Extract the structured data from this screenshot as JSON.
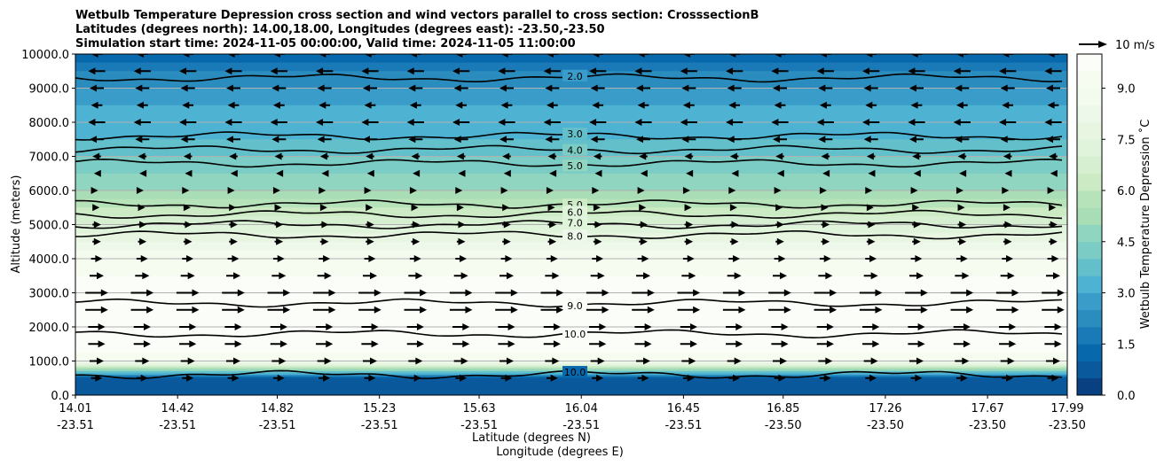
{
  "chart_data": {
    "type": "heatmap",
    "title_lines": [
      "Wetbulb Temperature Depression cross section and wind vectors parallel to cross section: CrosssectionB",
      "Latitudes (degrees north): 14.00,18.00, Longitudes (degrees east): -23.50,-23.50",
      "Simulation start time: 2024-11-05 00:00:00, Valid time: 2024-11-05 11:00:00"
    ],
    "ylabel": "Altitude (meters)",
    "xlabel_lat": "Latitude (degrees N)",
    "xlabel_lon": "Longitude (degrees E)",
    "ylim": [
      0,
      10000
    ],
    "xlim": [
      14.01,
      17.99
    ],
    "y_ticks": [
      "0.0",
      "1000.0",
      "2000.0",
      "3000.0",
      "4000.0",
      "5000.0",
      "6000.0",
      "7000.0",
      "8000.0",
      "9000.0",
      "10000.0"
    ],
    "x_ticks": [
      {
        "lat": "14.01",
        "lon": "-23.51",
        "pos": 14.01
      },
      {
        "lat": "14.42",
        "lon": "-23.51",
        "pos": 14.42
      },
      {
        "lat": "14.82",
        "lon": "-23.51",
        "pos": 14.82
      },
      {
        "lat": "15.23",
        "lon": "-23.51",
        "pos": 15.23
      },
      {
        "lat": "15.63",
        "lon": "-23.51",
        "pos": 15.63
      },
      {
        "lat": "16.04",
        "lon": "-23.51",
        "pos": 16.04
      },
      {
        "lat": "16.45",
        "lon": "-23.51",
        "pos": 16.45
      },
      {
        "lat": "16.85",
        "lon": "-23.50",
        "pos": 16.85
      },
      {
        "lat": "17.26",
        "lon": "-23.50",
        "pos": 17.26
      },
      {
        "lat": "17.67",
        "lon": "-23.50",
        "pos": 17.67
      },
      {
        "lat": "17.99",
        "lon": "-23.50",
        "pos": 17.99
      }
    ],
    "colorbar": {
      "label": "Wetbulb Temperature Depression ˚C",
      "range": [
        0,
        10
      ],
      "ticks": [
        "0.0",
        "1.5",
        "3.0",
        "4.5",
        "6.0",
        "7.5",
        "9.0"
      ],
      "levels": [
        0,
        0.5,
        1,
        1.5,
        2,
        2.5,
        3,
        3.5,
        4,
        4.5,
        5,
        5.5,
        6,
        6.5,
        7,
        7.5,
        8,
        8.5,
        9,
        9.5,
        10
      ],
      "colors": [
        "#084081",
        "#0a599c",
        "#0868ac",
        "#1a7ab8",
        "#2b8cbe",
        "#3a9cc8",
        "#4eb3d3",
        "#63c0cb",
        "#7bccc4",
        "#90d5c0",
        "#a8ddb5",
        "#b7e3ba",
        "#ccebc5",
        "#d6efd0",
        "#e0f3db",
        "#e7f5e1",
        "#eef8ea",
        "#f3fbee",
        "#f7fcf0",
        "#fbfdf8"
      ]
    },
    "quiver_key": {
      "label": "10 m/s"
    },
    "altitude_profile": [
      {
        "alt": 10000,
        "value": 1.0
      },
      {
        "alt": 9500,
        "value": 2.0
      },
      {
        "alt": 9000,
        "value": 2.5
      },
      {
        "alt": 8500,
        "value": 3.0
      },
      {
        "alt": 8000,
        "value": 3.0
      },
      {
        "alt": 7500,
        "value": 3.5
      },
      {
        "alt": 7000,
        "value": 4.0
      },
      {
        "alt": 6500,
        "value": 4.5
      },
      {
        "alt": 6000,
        "value": 5.0
      },
      {
        "alt": 5500,
        "value": 6.0
      },
      {
        "alt": 5000,
        "value": 7.0
      },
      {
        "alt": 4500,
        "value": 8.0
      },
      {
        "alt": 4000,
        "value": 9.0
      },
      {
        "alt": 3500,
        "value": 9.5
      },
      {
        "alt": 3000,
        "value": 10.0
      },
      {
        "alt": 2500,
        "value": 9.5
      },
      {
        "alt": 2000,
        "value": 10.0
      },
      {
        "alt": 1500,
        "value": 10.0
      },
      {
        "alt": 1000,
        "value": 9.0
      },
      {
        "alt": 500,
        "value": 1.0
      },
      {
        "alt": 0,
        "value": 0.5
      }
    ],
    "contour_levels": [
      {
        "label": "2.0",
        "alt": 9300
      },
      {
        "label": "3.0",
        "alt": 7600
      },
      {
        "label": "4.0",
        "alt": 7200
      },
      {
        "label": "5.0",
        "alt": 6800
      },
      {
        "label": "5.0",
        "alt": 5600
      },
      {
        "label": "6.0",
        "alt": 5300
      },
      {
        "label": "7.0",
        "alt": 5000
      },
      {
        "label": "8.0",
        "alt": 4700
      },
      {
        "label": "9.0",
        "alt": 2700
      },
      {
        "label": "10.0",
        "alt": 1800
      },
      {
        "label": "10.0",
        "alt": 600
      }
    ],
    "wind_levels": [
      {
        "alt": 10000,
        "speed": -4
      },
      {
        "alt": 9500,
        "speed": -6
      },
      {
        "alt": 9000,
        "speed": -5
      },
      {
        "alt": 8500,
        "speed": -4
      },
      {
        "alt": 8000,
        "speed": -6
      },
      {
        "alt": 7500,
        "speed": -5
      },
      {
        "alt": 7000,
        "speed": -3
      },
      {
        "alt": 6500,
        "speed": -2
      },
      {
        "alt": 6000,
        "speed": 1
      },
      {
        "alt": 5500,
        "speed": 2
      },
      {
        "alt": 5000,
        "speed": 3
      },
      {
        "alt": 4500,
        "speed": 3
      },
      {
        "alt": 4000,
        "speed": 4
      },
      {
        "alt": 3500,
        "speed": 5
      },
      {
        "alt": 3000,
        "speed": 8
      },
      {
        "alt": 2500,
        "speed": 8
      },
      {
        "alt": 2000,
        "speed": 6
      },
      {
        "alt": 1500,
        "speed": 6
      },
      {
        "alt": 1000,
        "speed": 5
      },
      {
        "alt": 500,
        "speed": 4
      }
    ]
  }
}
